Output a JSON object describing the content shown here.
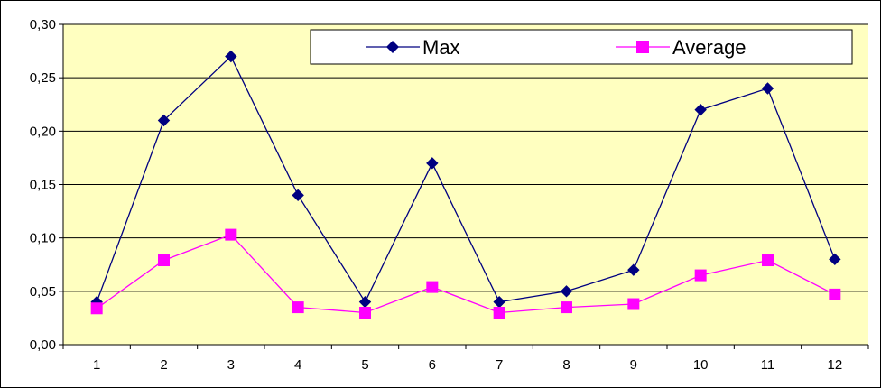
{
  "chart_data": {
    "type": "line",
    "title": "",
    "xlabel": "",
    "ylabel": "",
    "categories": [
      "1",
      "2",
      "3",
      "4",
      "5",
      "6",
      "7",
      "8",
      "9",
      "10",
      "11",
      "12"
    ],
    "ylim": [
      0,
      0.3
    ],
    "yticks": [
      "0,00",
      "0,05",
      "0,10",
      "0,15",
      "0,20",
      "0,25",
      "0,30"
    ],
    "grid": "horizontal",
    "legend_position": "top-right",
    "plot_background": "#FFFFC0",
    "series": [
      {
        "name": "Max",
        "color": "#000080",
        "marker": "diamond",
        "values": [
          0.04,
          0.21,
          0.27,
          0.14,
          0.04,
          0.17,
          0.04,
          0.05,
          0.07,
          0.22,
          0.24,
          0.08
        ]
      },
      {
        "name": "Average",
        "color": "#FF00FF",
        "marker": "square",
        "values": [
          0.034,
          0.079,
          0.103,
          0.035,
          0.03,
          0.054,
          0.03,
          0.035,
          0.038,
          0.065,
          0.079,
          0.047
        ]
      }
    ]
  }
}
